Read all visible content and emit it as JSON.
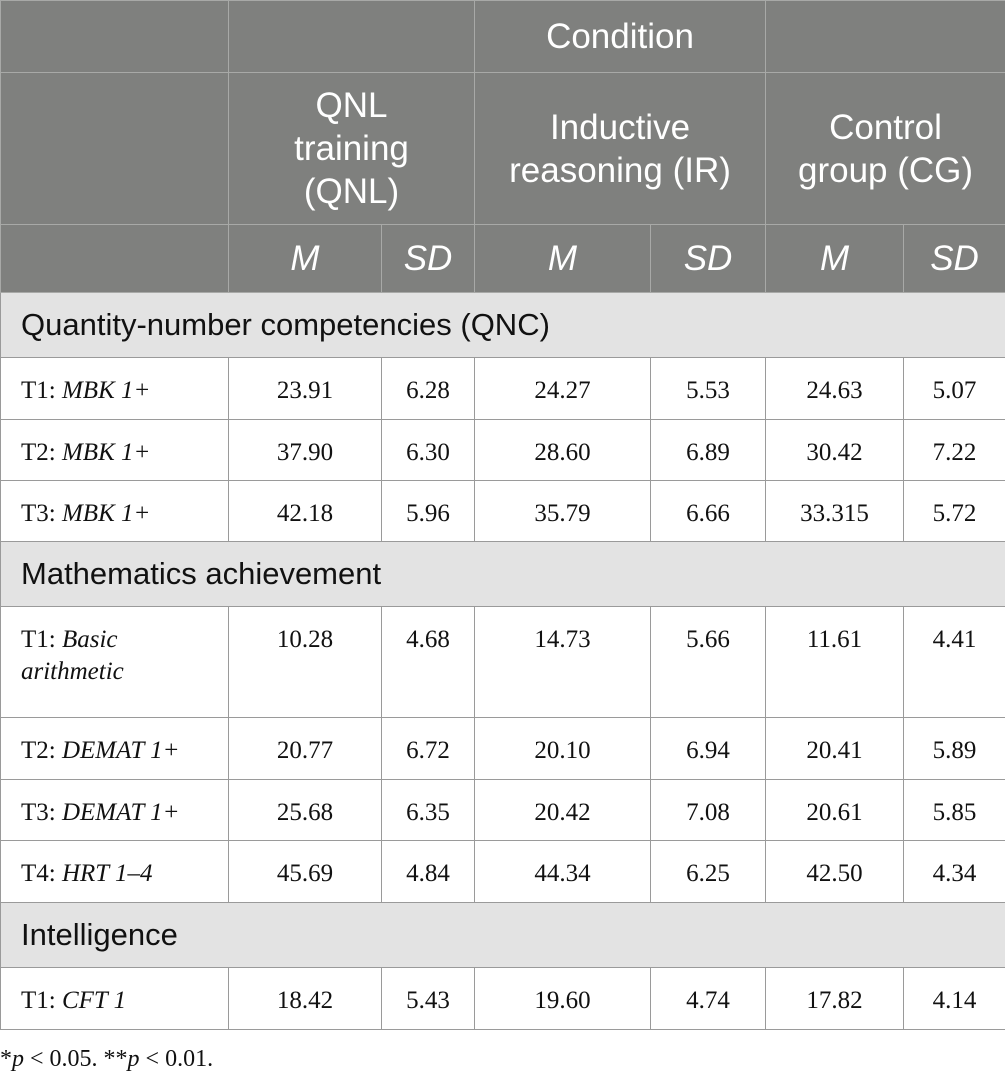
{
  "header": {
    "condition": "Condition",
    "groups": [
      "QNL training (QNL)",
      "Inductive reasoning (IR)",
      "Control group (CG)"
    ],
    "stat_m": "M",
    "stat_sd": "SD"
  },
  "sections": [
    {
      "title": "Quantity-number competencies (QNC)",
      "rows": [
        {
          "time": "T1:",
          "measure": "MBK 1+",
          "values": [
            "23.91",
            "6.28",
            "24.27",
            "5.53",
            "24.63",
            "5.07"
          ]
        },
        {
          "time": "T2:",
          "measure": "MBK 1+",
          "values": [
            "37.90",
            "6.30",
            "28.60",
            "6.89",
            "30.42",
            "7.22"
          ]
        },
        {
          "time": "T3:",
          "measure": "MBK 1+",
          "values": [
            "42.18",
            "5.96",
            "35.79",
            "6.66",
            "33.315",
            "5.72"
          ]
        }
      ]
    },
    {
      "title": "Mathematics achievement",
      "rows": [
        {
          "time": "T1:",
          "measure": "Basic arithmetic",
          "values": [
            "10.28",
            "4.68",
            "14.73",
            "5.66",
            "11.61",
            "4.41"
          ]
        },
        {
          "time": "T2:",
          "measure": "DEMAT 1+",
          "values": [
            "20.77",
            "6.72",
            "20.10",
            "6.94",
            "20.41",
            "5.89"
          ]
        },
        {
          "time": "T3:",
          "measure": "DEMAT 1+",
          "values": [
            "25.68",
            "6.35",
            "20.42",
            "7.08",
            "20.61",
            "5.85"
          ]
        },
        {
          "time": "T4:",
          "measure": "HRT 1–4",
          "values": [
            "45.69",
            "4.84",
            "44.34",
            "6.25",
            "42.50",
            "4.34"
          ]
        }
      ]
    },
    {
      "title": "Intelligence",
      "rows": [
        {
          "time": "T1:",
          "measure": "CFT 1",
          "values": [
            "18.42",
            "5.43",
            "19.60",
            "4.74",
            "17.82",
            "4.14"
          ]
        }
      ]
    }
  ],
  "note": {
    "p05_sym": "p",
    "p05_rest": " < 0.05. **",
    "p01_sym": "p",
    "p01_rest": " < 0.01.",
    "lead": "*"
  }
}
